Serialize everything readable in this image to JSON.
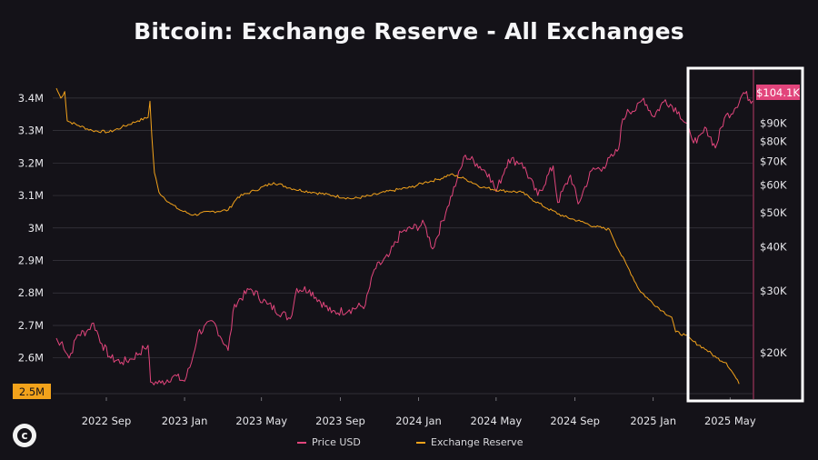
{
  "title": "Bitcoin: Exchange Reserve - All Exchanges",
  "price_badge": "$104.1K",
  "reserve_badge": "2.5M",
  "legend": {
    "price": "Price USD",
    "reserve": "Exchange Reserve"
  },
  "colors": {
    "background": "#141218",
    "price": "#e2457c",
    "reserve": "#f2a21b",
    "highlight_box": "#ffffff",
    "grid": "#3a3940"
  },
  "chart_data": {
    "type": "line",
    "title": "Bitcoin: Exchange Reserve - All Exchanges",
    "x_ticks": [
      "2022 Sep",
      "2023 Jan",
      "2023 May",
      "2023 Sep",
      "2024 Jan",
      "2024 May",
      "2024 Sep",
      "2025 Jan",
      "2025 May"
    ],
    "x_range": [
      "2022-06-15",
      "2025-06-05"
    ],
    "left_axis": {
      "ticks": [
        "3.4M",
        "3.3M",
        "3.2M",
        "3.1M",
        "3M",
        "2.9M",
        "2.8M",
        "2.7M",
        "2.6M"
      ],
      "tick_values": [
        3400000,
        3300000,
        3200000,
        3100000,
        3000000,
        2900000,
        2800000,
        2700000,
        2600000
      ],
      "ylim": [
        2490000,
        3450000
      ]
    },
    "right_axis": {
      "scale": "log",
      "ticks": [
        "$90K",
        "$80K",
        "$70K",
        "$60K",
        "$50K",
        "$40K",
        "$30K",
        "$20K"
      ],
      "tick_values": [
        90000,
        80000,
        70000,
        60000,
        50000,
        40000,
        30000,
        20000
      ],
      "ylim": [
        15300,
        118000
      ]
    },
    "series": [
      {
        "name": "Price USD",
        "axis": "right",
        "points": [
          [
            "2022-06-15",
            22000
          ],
          [
            "2022-06-20",
            21000
          ],
          [
            "2022-06-24",
            21500
          ],
          [
            "2022-07-05",
            19300
          ],
          [
            "2022-07-18",
            22500
          ],
          [
            "2022-08-01",
            23000
          ],
          [
            "2022-08-12",
            24300
          ],
          [
            "2022-08-25",
            21200
          ],
          [
            "2022-09-08",
            19300
          ],
          [
            "2022-09-25",
            18800
          ],
          [
            "2022-10-10",
            19200
          ],
          [
            "2022-10-30",
            20600
          ],
          [
            "2022-11-05",
            21000
          ],
          [
            "2022-11-09",
            16500
          ],
          [
            "2022-11-25",
            16400
          ],
          [
            "2022-12-15",
            17200
          ],
          [
            "2023-01-01",
            16600
          ],
          [
            "2023-01-12",
            18800
          ],
          [
            "2023-01-22",
            22800
          ],
          [
            "2023-02-15",
            24500
          ],
          [
            "2023-03-10",
            20300
          ],
          [
            "2023-03-20",
            27500
          ],
          [
            "2023-04-14",
            30400
          ],
          [
            "2023-05-10",
            27500
          ],
          [
            "2023-06-15",
            25000
          ],
          [
            "2023-06-25",
            30500
          ],
          [
            "2023-07-15",
            30200
          ],
          [
            "2023-08-18",
            26000
          ],
          [
            "2023-09-15",
            26500
          ],
          [
            "2023-10-10",
            27400
          ],
          [
            "2023-10-24",
            34500
          ],
          [
            "2023-11-15",
            37500
          ],
          [
            "2023-12-05",
            44000
          ],
          [
            "2024-01-10",
            46500
          ],
          [
            "2024-01-23",
            39500
          ],
          [
            "2024-02-15",
            52000
          ],
          [
            "2024-03-01",
            62000
          ],
          [
            "2024-03-14",
            73000
          ],
          [
            "2024-04-01",
            69000
          ],
          [
            "2024-04-20",
            64500
          ],
          [
            "2024-05-01",
            57500
          ],
          [
            "2024-05-20",
            71000
          ],
          [
            "2024-06-10",
            69500
          ],
          [
            "2024-07-05",
            56000
          ],
          [
            "2024-07-29",
            68000
          ],
          [
            "2024-08-05",
            53500
          ],
          [
            "2024-08-25",
            64000
          ],
          [
            "2024-09-06",
            53000
          ],
          [
            "2024-09-27",
            66000
          ],
          [
            "2024-10-15",
            67500
          ],
          [
            "2024-10-30",
            72500
          ],
          [
            "2024-11-08",
            76000
          ],
          [
            "2024-11-12",
            88000
          ],
          [
            "2024-11-22",
            98500
          ],
          [
            "2024-12-05",
            98000
          ],
          [
            "2024-12-17",
            106000
          ],
          [
            "2025-01-01",
            94000
          ],
          [
            "2025-01-20",
            105000
          ],
          [
            "2025-02-10",
            97000
          ],
          [
            "2025-02-28",
            84000
          ],
          [
            "2025-03-10",
            79000
          ],
          [
            "2025-03-25",
            87000
          ],
          [
            "2025-04-08",
            76500
          ],
          [
            "2025-04-22",
            93000
          ],
          [
            "2025-05-08",
            99000
          ],
          [
            "2025-05-22",
            110000
          ],
          [
            "2025-06-05",
            104100
          ]
        ]
      },
      {
        "name": "Exchange Reserve",
        "axis": "left",
        "points": [
          [
            "2022-06-15",
            3430000
          ],
          [
            "2022-06-22",
            3400000
          ],
          [
            "2022-06-28",
            3420000
          ],
          [
            "2022-07-02",
            3330000
          ],
          [
            "2022-07-20",
            3315000
          ],
          [
            "2022-08-10",
            3300000
          ],
          [
            "2022-09-05",
            3295000
          ],
          [
            "2022-09-25",
            3310000
          ],
          [
            "2022-10-20",
            3330000
          ],
          [
            "2022-11-05",
            3340000
          ],
          [
            "2022-11-08",
            3390000
          ],
          [
            "2022-11-11",
            3280000
          ],
          [
            "2022-11-15",
            3170000
          ],
          [
            "2022-11-22",
            3110000
          ],
          [
            "2022-12-10",
            3075000
          ],
          [
            "2022-12-25",
            3055000
          ],
          [
            "2023-01-15",
            3040000
          ],
          [
            "2023-02-10",
            3050000
          ],
          [
            "2023-03-10",
            3055000
          ],
          [
            "2023-03-25",
            3095000
          ],
          [
            "2023-04-20",
            3115000
          ],
          [
            "2023-05-20",
            3140000
          ],
          [
            "2023-06-20",
            3120000
          ],
          [
            "2023-07-20",
            3110000
          ],
          [
            "2023-08-20",
            3100000
          ],
          [
            "2023-09-20",
            3090000
          ],
          [
            "2023-10-20",
            3100000
          ],
          [
            "2023-11-20",
            3115000
          ],
          [
            "2023-12-20",
            3125000
          ],
          [
            "2024-01-10",
            3140000
          ],
          [
            "2024-02-01",
            3150000
          ],
          [
            "2024-02-20",
            3165000
          ],
          [
            "2024-03-15",
            3150000
          ],
          [
            "2024-04-10",
            3125000
          ],
          [
            "2024-05-10",
            3115000
          ],
          [
            "2024-06-10",
            3110000
          ],
          [
            "2024-06-25",
            3090000
          ],
          [
            "2024-07-20",
            3060000
          ],
          [
            "2024-08-15",
            3035000
          ],
          [
            "2024-09-10",
            3020000
          ],
          [
            "2024-10-01",
            3005000
          ],
          [
            "2024-10-25",
            2995000
          ],
          [
            "2024-11-10",
            2925000
          ],
          [
            "2024-11-25",
            2870000
          ],
          [
            "2024-12-10",
            2810000
          ],
          [
            "2024-12-25",
            2780000
          ],
          [
            "2025-01-15",
            2745000
          ],
          [
            "2025-01-30",
            2725000
          ],
          [
            "2025-02-05",
            2680000
          ],
          [
            "2025-02-20",
            2670000
          ],
          [
            "2025-03-05",
            2650000
          ],
          [
            "2025-03-25",
            2625000
          ],
          [
            "2025-04-10",
            2600000
          ],
          [
            "2025-04-25",
            2585000
          ],
          [
            "2025-05-08",
            2545000
          ],
          [
            "2025-05-15",
            2520000
          ]
        ]
      }
    ],
    "annotations": [
      "$104.1K",
      "2.5M"
    ],
    "grid": true
  }
}
